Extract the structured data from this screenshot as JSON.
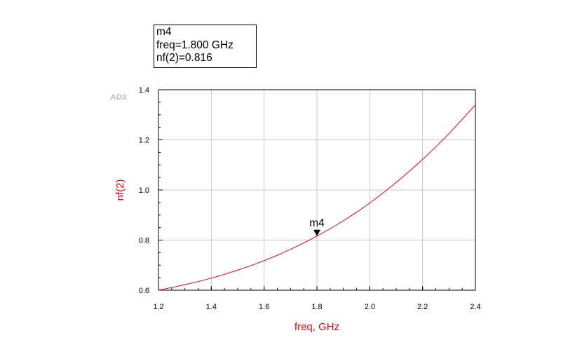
{
  "marker_box": {
    "name": "m4",
    "freq_line": "freq=1.800 GHz",
    "value_line": "nf(2)=0.816"
  },
  "logo_text": "ADS",
  "chart_data": {
    "type": "line",
    "xlabel": "freq, GHz",
    "ylabel": "nf(2)",
    "xlim": [
      1.2,
      2.4
    ],
    "ylim": [
      0.6,
      1.4
    ],
    "x_ticks": [
      "1.2",
      "1.4",
      "1.6",
      "1.8",
      "2.0",
      "2.2",
      "2.4"
    ],
    "y_ticks": [
      "0.6",
      "0.8",
      "1.0",
      "1.2",
      "1.4"
    ],
    "grid": true,
    "series": [
      {
        "color": "#e8000b",
        "x": [
          1.2,
          1.3,
          1.4,
          1.5,
          1.6,
          1.7,
          1.8,
          1.9,
          2.0,
          2.1,
          2.2,
          2.3,
          2.4
        ],
        "y": [
          0.6,
          0.622,
          0.648,
          0.68,
          0.718,
          0.763,
          0.816,
          0.877,
          0.948,
          1.03,
          1.122,
          1.225,
          1.34
        ]
      }
    ],
    "markers": [
      {
        "label": "m4",
        "x": 1.8,
        "y": 0.816
      }
    ],
    "axis_color": "#000000",
    "label_color": "#e8000b",
    "grid_color": "#c8c8c8"
  }
}
